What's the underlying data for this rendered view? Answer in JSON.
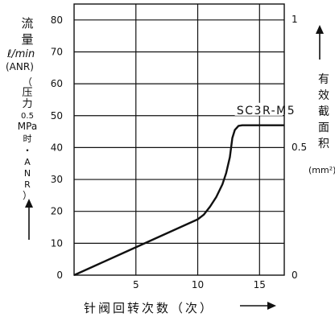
{
  "left_axis": {
    "title_chars": [
      "流",
      "量"
    ],
    "unit": "ℓ/min",
    "unit_note": "(ANR)",
    "condition_chars": [
      "（",
      "压",
      "力",
      "0.5",
      "MPa",
      "时",
      "・",
      "A",
      "N",
      "R",
      "）"
    ]
  },
  "right_axis": {
    "title_chars": [
      "有",
      "效",
      "截",
      "面",
      "积"
    ],
    "unit": "(mm²)"
  },
  "x_axis": {
    "title": "针阀回转次数（次）"
  },
  "chart_data": {
    "type": "line",
    "series": [
      {
        "name": "SC3R-M5",
        "x": [
          0,
          2,
          4,
          6,
          8,
          10,
          10.5,
          11,
          11.5,
          12,
          12.3,
          12.6,
          12.8,
          13.0,
          13.3,
          13.6,
          14,
          15,
          16,
          17
        ],
        "y": [
          0,
          3.5,
          7.0,
          10.5,
          14.0,
          17.5,
          19.0,
          21.5,
          24.5,
          28.5,
          32,
          37,
          43,
          45.5,
          46.8,
          47.0,
          47,
          47,
          47,
          47
        ]
      }
    ],
    "x_ticks": [
      5,
      10,
      15
    ],
    "y_ticks_left": [
      0,
      10,
      20,
      30,
      40,
      50,
      60,
      70,
      80
    ],
    "y_ticks_right": [
      "0",
      "0.5",
      "1"
    ],
    "xlim": [
      0,
      17
    ],
    "ylim_left": [
      0,
      85
    ],
    "ylim_right": [
      0,
      1.06
    ],
    "grid": true,
    "series_label": "SC3R-M5"
  }
}
